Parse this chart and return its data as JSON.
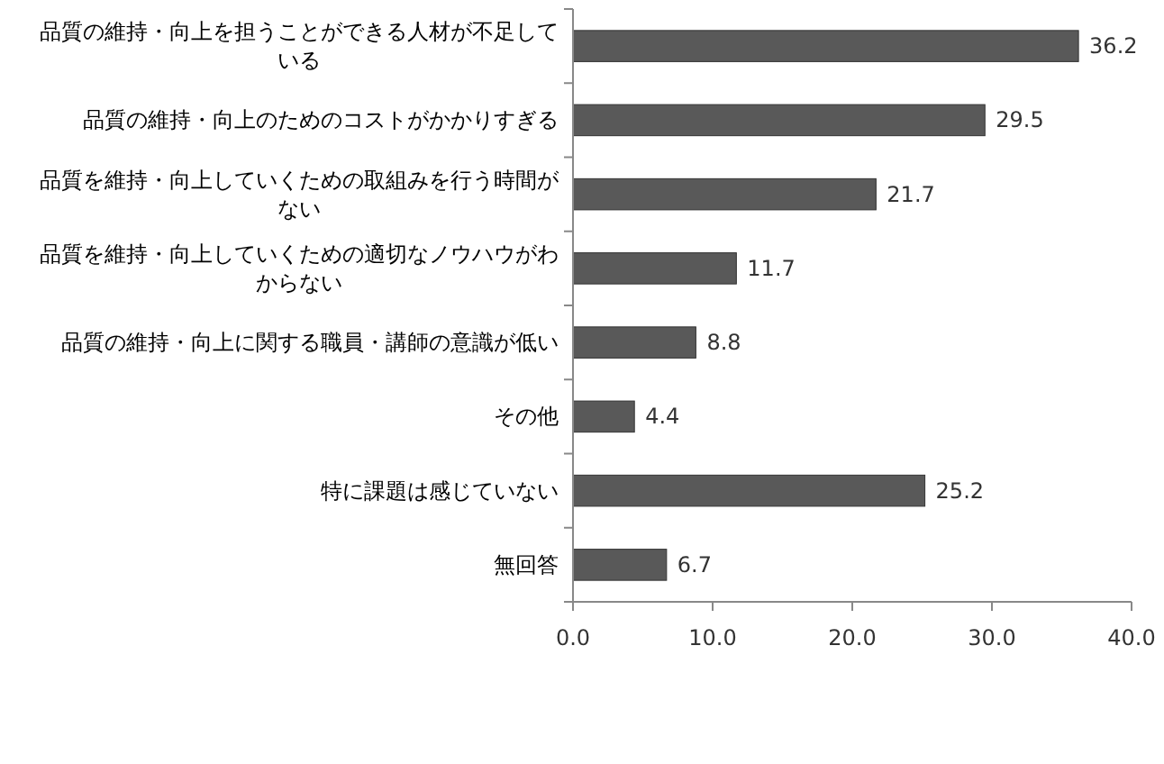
{
  "chart_data": {
    "type": "bar",
    "orientation": "horizontal",
    "categories": [
      "品質の維持・向上を担うことができる人材が不足している",
      "品質の維持・向上のためのコストがかかりすぎる",
      "品質を維持・向上していくための取組みを行う時間がない",
      "品質を維持・向上していくための適切なノウハウがわからない",
      "品質の維持・向上に関する職員・講師の意識が低い",
      "その他",
      "特に課題は感じていない",
      "無回答"
    ],
    "values": [
      36.2,
      29.5,
      21.7,
      11.7,
      8.8,
      4.4,
      25.2,
      6.7
    ],
    "color": "#595959",
    "xlim": [
      0,
      40
    ],
    "xticks": [
      {
        "value": 0,
        "label": "0.0"
      },
      {
        "value": 10,
        "label": "10.0"
      },
      {
        "value": 20,
        "label": "20.0"
      },
      {
        "value": 30,
        "label": "30.0"
      },
      {
        "value": 40,
        "label": "40.0"
      }
    ],
    "data_labels": true,
    "grid": false
  }
}
